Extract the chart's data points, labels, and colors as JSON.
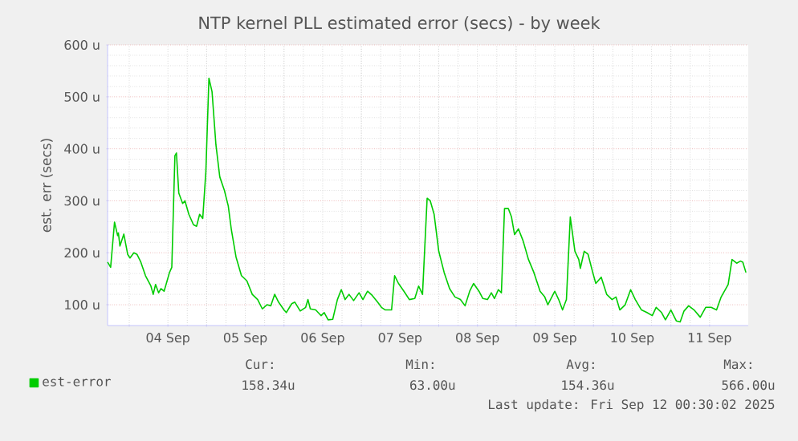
{
  "chart_data": {
    "type": "line",
    "title": "NTP kernel PLL estimated error (secs) - by week",
    "ylabel": "est. err (secs)",
    "xlim": [
      "2025-09-03T17:17",
      "2025-09-12T00:00"
    ],
    "ylim": [
      60,
      600
    ],
    "xticks": [
      {
        "value": "2025-09-04T00:00",
        "label": null
      },
      {
        "value": "2025-09-04T12:00",
        "label": "04 Sep"
      },
      {
        "value": "2025-09-05T00:00",
        "label": null
      },
      {
        "value": "2025-09-05T12:00",
        "label": "05 Sep"
      },
      {
        "value": "2025-09-06T00:00",
        "label": null
      },
      {
        "value": "2025-09-06T12:00",
        "label": "06 Sep"
      },
      {
        "value": "2025-09-07T00:00",
        "label": null
      },
      {
        "value": "2025-09-07T12:00",
        "label": "07 Sep"
      },
      {
        "value": "2025-09-08T00:00",
        "label": null
      },
      {
        "value": "2025-09-08T12:00",
        "label": "08 Sep"
      },
      {
        "value": "2025-09-09T00:00",
        "label": null
      },
      {
        "value": "2025-09-09T12:00",
        "label": "09 Sep"
      },
      {
        "value": "2025-09-10T00:00",
        "label": null
      },
      {
        "value": "2025-09-10T12:00",
        "label": "10 Sep"
      },
      {
        "value": "2025-09-11T00:00",
        "label": null
      },
      {
        "value": "2025-09-11T12:00",
        "label": "11 Sep"
      }
    ],
    "yticks": [
      {
        "value": 100,
        "label": "100 u"
      },
      {
        "value": 200,
        "label": "200 u"
      },
      {
        "value": 300,
        "label": "300 u"
      },
      {
        "value": 400,
        "label": "400 u"
      },
      {
        "value": 500,
        "label": "500 u"
      },
      {
        "value": 600,
        "label": "600 u"
      }
    ],
    "grid": true,
    "legend": "bottom",
    "marker": "none",
    "line_style": "solid",
    "series": [
      {
        "name": "est-error",
        "color": "#00cc00",
        "x": [
          "2025-09-03T17:17",
          "2025-09-03T17:46",
          "2025-09-03T18:14",
          "2025-09-03T19:26",
          "2025-09-03T20:24",
          "2025-09-03T20:38",
          "2025-09-03T21:07",
          "2025-09-03T22:19",
          "2025-09-03T23:31",
          "2025-09-04T00:14",
          "2025-09-04T01:26",
          "2025-09-04T02:24",
          "2025-09-04T03:36",
          "2025-09-04T05:02",
          "2025-09-04T06:43",
          "2025-09-04T07:26",
          "2025-09-04T08:10",
          "2025-09-04T09:07",
          "2025-09-04T09:50",
          "2025-09-04T10:48",
          "2025-09-04T11:31",
          "2025-09-04T12:29",
          "2025-09-04T13:12",
          "2025-09-04T14:10",
          "2025-09-04T14:38",
          "2025-09-04T15:22",
          "2025-09-04T16:34",
          "2025-09-04T17:17",
          "2025-09-04T18:29",
          "2025-09-04T19:55",
          "2025-09-04T20:53",
          "2025-09-04T21:50",
          "2025-09-04T22:48",
          "2025-09-04T23:46",
          "2025-09-05T00:43",
          "2025-09-05T01:41",
          "2025-09-05T02:53",
          "2025-09-05T04:05",
          "2025-09-05T05:31",
          "2025-09-05T06:43",
          "2025-09-05T07:41",
          "2025-09-05T09:07",
          "2025-09-05T10:48",
          "2025-09-05T12:29",
          "2025-09-05T14:10",
          "2025-09-05T15:50",
          "2025-09-05T17:17",
          "2025-09-05T18:43",
          "2025-09-05T19:55",
          "2025-09-05T21:07",
          "2025-09-05T22:19",
          "2025-09-06T00:00",
          "2025-09-06T00:43",
          "2025-09-06T02:24",
          "2025-09-06T03:22",
          "2025-09-06T05:02",
          "2025-09-06T06:43",
          "2025-09-06T07:26",
          "2025-09-06T08:10",
          "2025-09-06T09:50",
          "2025-09-06T11:31",
          "2025-09-06T12:29",
          "2025-09-06T13:41",
          "2025-09-06T15:07",
          "2025-09-06T16:34",
          "2025-09-06T17:46",
          "2025-09-06T18:58",
          "2025-09-06T20:10",
          "2025-09-06T21:36",
          "2025-09-06T23:17",
          "2025-09-07T00:29",
          "2025-09-07T01:55",
          "2025-09-07T03:22",
          "2025-09-07T05:02",
          "2025-09-07T06:14",
          "2025-09-07T07:26",
          "2025-09-07T09:22",
          "2025-09-07T10:19",
          "2025-09-07T11:31",
          "2025-09-07T13:12",
          "2025-09-07T14:53",
          "2025-09-07T16:34",
          "2025-09-07T17:46",
          "2025-09-07T18:58",
          "2025-09-07T20:24",
          "2025-09-07T21:22",
          "2025-09-07T22:34",
          "2025-09-08T00:00",
          "2025-09-08T01:41",
          "2025-09-08T03:22",
          "2025-09-08T05:02",
          "2025-09-08T06:43",
          "2025-09-08T08:10",
          "2025-09-08T09:36",
          "2025-09-08T10:48",
          "2025-09-08T12:29",
          "2025-09-08T13:41",
          "2025-09-08T15:07",
          "2025-09-08T16:19",
          "2025-09-08T17:17",
          "2025-09-08T18:29",
          "2025-09-08T19:26",
          "2025-09-08T20:24",
          "2025-09-08T21:36",
          "2025-09-08T22:34",
          "2025-09-08T23:31",
          "2025-09-09T00:43",
          "2025-09-09T02:10",
          "2025-09-09T03:50",
          "2025-09-09T05:31",
          "2025-09-09T07:26",
          "2025-09-09T08:53",
          "2025-09-09T09:50",
          "2025-09-09T12:00",
          "2025-09-09T13:12",
          "2025-09-09T14:24",
          "2025-09-09T15:36",
          "2025-09-09T16:48",
          "2025-09-09T18:14",
          "2025-09-09T19:26",
          "2025-09-09T19:55",
          "2025-09-09T21:07",
          "2025-09-09T22:19",
          "2025-09-09T23:46",
          "2025-09-10T00:43",
          "2025-09-10T02:24",
          "2025-09-10T04:05",
          "2025-09-10T05:46",
          "2025-09-10T06:58",
          "2025-09-10T08:10",
          "2025-09-10T09:50",
          "2025-09-10T11:31",
          "2025-09-10T12:58",
          "2025-09-10T14:53",
          "2025-09-10T16:34",
          "2025-09-10T18:14",
          "2025-09-10T19:26",
          "2025-09-10T21:07",
          "2025-09-10T22:19",
          "2025-09-11T00:00",
          "2025-09-11T01:41",
          "2025-09-11T02:53",
          "2025-09-11T04:05",
          "2025-09-11T05:31",
          "2025-09-11T07:12",
          "2025-09-11T09:07",
          "2025-09-11T10:48",
          "2025-09-11T12:29",
          "2025-09-11T14:10",
          "2025-09-11T15:36",
          "2025-09-11T17:46",
          "2025-09-11T18:58",
          "2025-09-11T20:24",
          "2025-09-11T21:36",
          "2025-09-11T22:19",
          "2025-09-11T23:17"
        ],
        "values": [
          182,
          177,
          172,
          259,
          233,
          238,
          213,
          236,
          197,
          190,
          200,
          197,
          182,
          156,
          136,
          120,
          139,
          123,
          131,
          126,
          141,
          162,
          172,
          387,
          392,
          315,
          295,
          300,
          274,
          254,
          251,
          274,
          266,
          356,
          536,
          510,
          408,
          346,
          320,
          290,
          244,
          192,
          156,
          146,
          120,
          110,
          92,
          100,
          98,
          120,
          105,
          90,
          85,
          102,
          105,
          88,
          95,
          110,
          92,
          90,
          79,
          85,
          71,
          72,
          110,
          129,
          110,
          120,
          108,
          123,
          110,
          126,
          118,
          105,
          95,
          90,
          90,
          156,
          141,
          126,
          110,
          112,
          136,
          120,
          305,
          300,
          274,
          203,
          162,
          131,
          115,
          110,
          98,
          126,
          141,
          126,
          112,
          110,
          123,
          112,
          129,
          123,
          285,
          285,
          269,
          235,
          246,
          223,
          187,
          162,
          126,
          115,
          100,
          126,
          110,
          90,
          110,
          269,
          203,
          187,
          170,
          203,
          197,
          162,
          141,
          153,
          120,
          110,
          115,
          90,
          100,
          129,
          110,
          90,
          85,
          79,
          95,
          85,
          71,
          90,
          69,
          67,
          88,
          98,
          90,
          76,
          95,
          95,
          90,
          115,
          139,
          187,
          180,
          184,
          182,
          162
        ]
      }
    ],
    "annotations": [
      "Cur:",
      "Min:",
      "Avg:",
      "Max:",
      "158.34u",
      "63.00u",
      "154.36u",
      "566.00u",
      "Last update: Fri Sep 12 00:30:02 2025"
    ]
  }
}
